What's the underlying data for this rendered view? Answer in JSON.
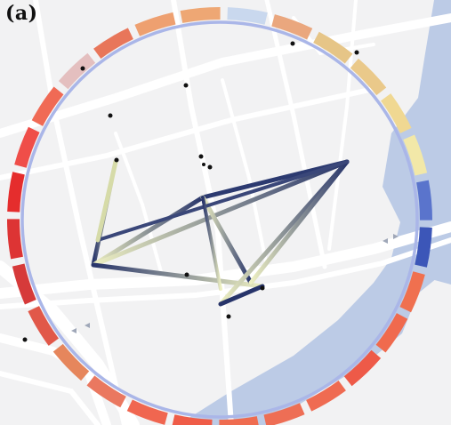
{
  "panel_label": "(a)",
  "colors": {
    "background": "#f2f2f3",
    "road": "#ffffff",
    "water": "#bccbe6",
    "ring_track": "#aab6e8",
    "edge_strong": "#27346a",
    "edge_weak": "#eef0c2",
    "poi": "#111111"
  },
  "ring_segment_colors": [
    "#c9d8ee",
    "#eaa77e",
    "#e6c587",
    "#eac98a",
    "#f0d892",
    "#f2e8a8",
    "#5a74cc",
    "#3c56b8",
    "#f0704f",
    "#f06a4e",
    "#ee5a48",
    "#ef6b52",
    "#ee6e55",
    "#ef6c50",
    "#ef5c48",
    "#f06650",
    "#ea7860",
    "#e6865c",
    "#e15849",
    "#d63a3a",
    "#dd3434",
    "#e52d2d",
    "#ef4e49",
    "#f06a55",
    "#e4bfbf",
    "#e8765a",
    "#eea070",
    "#eea774"
  ],
  "icons": {
    "road_arrows": "arrow-icon"
  }
}
